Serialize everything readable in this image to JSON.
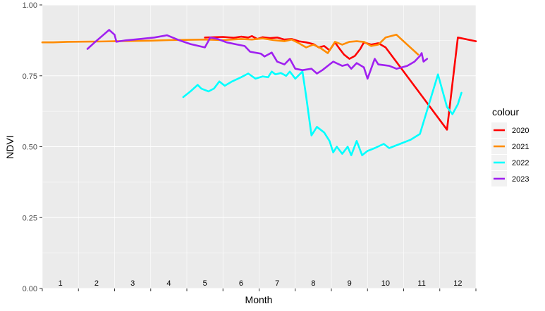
{
  "chart_data": {
    "type": "line",
    "title": "",
    "xlabel": "Month",
    "ylabel": "NDVI",
    "ylim": [
      0,
      1
    ],
    "xlim": [
      0.5,
      12.5
    ],
    "y_ticks": [
      0.0,
      0.25,
      0.5,
      0.75,
      1.0
    ],
    "y_tick_labels": [
      "0.00",
      "0.25",
      "0.50",
      "0.75",
      "1.00"
    ],
    "month_labels": [
      "1",
      "2",
      "3",
      "4",
      "5",
      "6",
      "7",
      "8",
      "9",
      "10",
      "11",
      "12"
    ],
    "grid": true,
    "legend": {
      "title": "colour",
      "position": "right"
    },
    "series": [
      {
        "name": "2020",
        "color": "#ff0000",
        "points": [
          [
            5.0,
            0.885
          ],
          [
            5.5,
            0.887
          ],
          [
            5.8,
            0.884
          ],
          [
            6.0,
            0.888
          ],
          [
            6.2,
            0.885
          ],
          [
            6.3,
            0.89
          ],
          [
            6.45,
            0.88
          ],
          [
            6.6,
            0.886
          ],
          [
            6.8,
            0.883
          ],
          [
            7.0,
            0.885
          ],
          [
            7.2,
            0.878
          ],
          [
            7.4,
            0.88
          ],
          [
            7.6,
            0.872
          ],
          [
            7.8,
            0.868
          ],
          [
            8.0,
            0.862
          ],
          [
            8.15,
            0.85
          ],
          [
            8.3,
            0.855
          ],
          [
            8.45,
            0.84
          ],
          [
            8.6,
            0.868
          ],
          [
            8.7,
            0.85
          ],
          [
            8.85,
            0.825
          ],
          [
            9.0,
            0.81
          ],
          [
            9.15,
            0.82
          ],
          [
            9.3,
            0.845
          ],
          [
            9.4,
            0.868
          ],
          [
            9.6,
            0.86
          ],
          [
            9.8,
            0.865
          ],
          [
            10.0,
            0.85
          ],
          [
            11.0,
            0.68
          ],
          [
            11.7,
            0.56
          ],
          [
            12.0,
            0.885
          ],
          [
            12.5,
            0.872
          ]
        ]
      },
      {
        "name": "2021",
        "color": "#ff8c00",
        "points": [
          [
            0.5,
            0.868
          ],
          [
            0.8,
            0.868
          ],
          [
            1.2,
            0.87
          ],
          [
            2.0,
            0.871
          ],
          [
            2.5,
            0.872
          ],
          [
            3.0,
            0.873
          ],
          [
            3.5,
            0.874
          ],
          [
            4.0,
            0.876
          ],
          [
            5.0,
            0.878
          ],
          [
            5.5,
            0.876
          ],
          [
            6.0,
            0.88
          ],
          [
            6.3,
            0.878
          ],
          [
            6.6,
            0.882
          ],
          [
            6.9,
            0.876
          ],
          [
            7.2,
            0.872
          ],
          [
            7.4,
            0.878
          ],
          [
            7.6,
            0.865
          ],
          [
            7.8,
            0.85
          ],
          [
            8.0,
            0.86
          ],
          [
            8.2,
            0.848
          ],
          [
            8.4,
            0.83
          ],
          [
            8.6,
            0.87
          ],
          [
            8.8,
            0.86
          ],
          [
            9.0,
            0.87
          ],
          [
            9.2,
            0.872
          ],
          [
            9.4,
            0.87
          ],
          [
            9.6,
            0.855
          ],
          [
            9.8,
            0.86
          ],
          [
            10.0,
            0.885
          ],
          [
            10.3,
            0.895
          ],
          [
            10.6,
            0.86
          ],
          [
            10.9,
            0.825
          ]
        ]
      },
      {
        "name": "2022",
        "color": "#00ffff",
        "points": [
          [
            4.4,
            0.675
          ],
          [
            4.6,
            0.695
          ],
          [
            4.8,
            0.718
          ],
          [
            4.9,
            0.705
          ],
          [
            5.1,
            0.695
          ],
          [
            5.25,
            0.705
          ],
          [
            5.4,
            0.73
          ],
          [
            5.55,
            0.715
          ],
          [
            5.75,
            0.73
          ],
          [
            6.0,
            0.745
          ],
          [
            6.2,
            0.758
          ],
          [
            6.4,
            0.74
          ],
          [
            6.6,
            0.748
          ],
          [
            6.75,
            0.745
          ],
          [
            6.85,
            0.765
          ],
          [
            6.95,
            0.755
          ],
          [
            7.1,
            0.76
          ],
          [
            7.25,
            0.75
          ],
          [
            7.35,
            0.765
          ],
          [
            7.5,
            0.74
          ],
          [
            7.7,
            0.765
          ],
          [
            7.8,
            0.68
          ],
          [
            7.95,
            0.54
          ],
          [
            8.1,
            0.57
          ],
          [
            8.3,
            0.55
          ],
          [
            8.45,
            0.52
          ],
          [
            8.55,
            0.48
          ],
          [
            8.65,
            0.5
          ],
          [
            8.8,
            0.475
          ],
          [
            8.95,
            0.5
          ],
          [
            9.05,
            0.47
          ],
          [
            9.2,
            0.52
          ],
          [
            9.35,
            0.47
          ],
          [
            9.5,
            0.485
          ],
          [
            9.7,
            0.495
          ],
          [
            9.95,
            0.51
          ],
          [
            10.1,
            0.495
          ],
          [
            10.4,
            0.51
          ],
          [
            10.7,
            0.525
          ],
          [
            10.95,
            0.545
          ],
          [
            11.2,
            0.65
          ],
          [
            11.45,
            0.755
          ],
          [
            11.7,
            0.64
          ],
          [
            11.85,
            0.615
          ],
          [
            12.0,
            0.65
          ],
          [
            12.1,
            0.69
          ]
        ]
      },
      {
        "name": "2023",
        "color": "#a020f0",
        "points": [
          [
            1.75,
            0.845
          ],
          [
            1.95,
            0.868
          ],
          [
            2.15,
            0.89
          ],
          [
            2.35,
            0.912
          ],
          [
            2.5,
            0.895
          ],
          [
            2.55,
            0.87
          ],
          [
            2.8,
            0.875
          ],
          [
            3.2,
            0.88
          ],
          [
            3.6,
            0.885
          ],
          [
            3.95,
            0.893
          ],
          [
            4.3,
            0.875
          ],
          [
            4.6,
            0.862
          ],
          [
            5.0,
            0.85
          ],
          [
            5.15,
            0.885
          ],
          [
            5.35,
            0.88
          ],
          [
            5.6,
            0.868
          ],
          [
            5.9,
            0.86
          ],
          [
            6.1,
            0.855
          ],
          [
            6.25,
            0.835
          ],
          [
            6.55,
            0.828
          ],
          [
            6.65,
            0.818
          ],
          [
            6.85,
            0.832
          ],
          [
            7.0,
            0.8
          ],
          [
            7.2,
            0.79
          ],
          [
            7.35,
            0.81
          ],
          [
            7.5,
            0.775
          ],
          [
            7.7,
            0.77
          ],
          [
            7.95,
            0.775
          ],
          [
            8.1,
            0.758
          ],
          [
            8.25,
            0.77
          ],
          [
            8.45,
            0.79
          ],
          [
            8.55,
            0.8
          ],
          [
            8.8,
            0.785
          ],
          [
            8.95,
            0.79
          ],
          [
            9.05,
            0.775
          ],
          [
            9.2,
            0.795
          ],
          [
            9.4,
            0.78
          ],
          [
            9.5,
            0.74
          ],
          [
            9.6,
            0.775
          ],
          [
            9.7,
            0.81
          ],
          [
            9.8,
            0.79
          ],
          [
            10.1,
            0.785
          ],
          [
            10.3,
            0.775
          ],
          [
            10.6,
            0.785
          ],
          [
            10.8,
            0.8
          ],
          [
            10.95,
            0.82
          ],
          [
            11.0,
            0.83
          ],
          [
            11.05,
            0.8
          ],
          [
            11.15,
            0.81
          ]
        ]
      }
    ]
  }
}
